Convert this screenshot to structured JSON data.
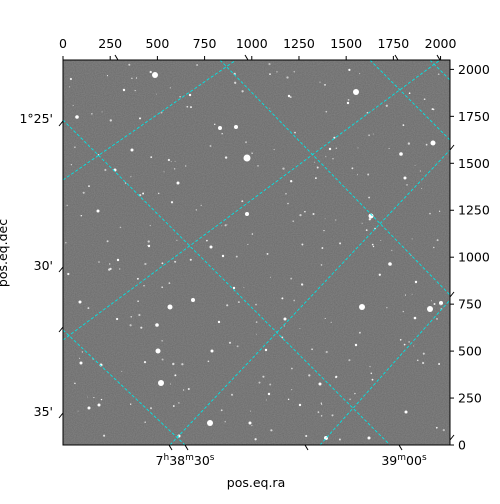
{
  "figure": {
    "xlabel": "pos.eq.ra",
    "ylabel": "pos.eq.dec",
    "pixel_axis_top": {
      "ticks": [
        0,
        250,
        500,
        750,
        1000,
        1250,
        1500,
        1750,
        2000
      ],
      "labels": [
        "0",
        "250",
        "500",
        "750",
        "1000",
        "1250",
        "1500",
        "1750",
        "2000"
      ],
      "range": [
        0,
        2050
      ]
    },
    "pixel_axis_right": {
      "ticks": [
        0,
        250,
        500,
        750,
        1000,
        1250,
        1500,
        1750,
        2000
      ],
      "labels": [
        "0",
        "250",
        "500",
        "750",
        "1000",
        "1250",
        "1500",
        "1750",
        "2000"
      ],
      "range": [
        0,
        2050
      ]
    },
    "ra_tick_labels": [
      {
        "hour": "7",
        "h": "h",
        "min": "38",
        "m": "m",
        "sec": "30",
        "s": "s"
      },
      {
        "min": "39",
        "m": "m",
        "sec": "00",
        "s": "s"
      }
    ],
    "dec_tick_labels": [
      "1°25'",
      "30'",
      "35'"
    ],
    "grid_color": "#00e5e5",
    "image_colors": {
      "background": "#6a6a6a",
      "stars": "#ffffff",
      "frame": "#000000"
    }
  }
}
